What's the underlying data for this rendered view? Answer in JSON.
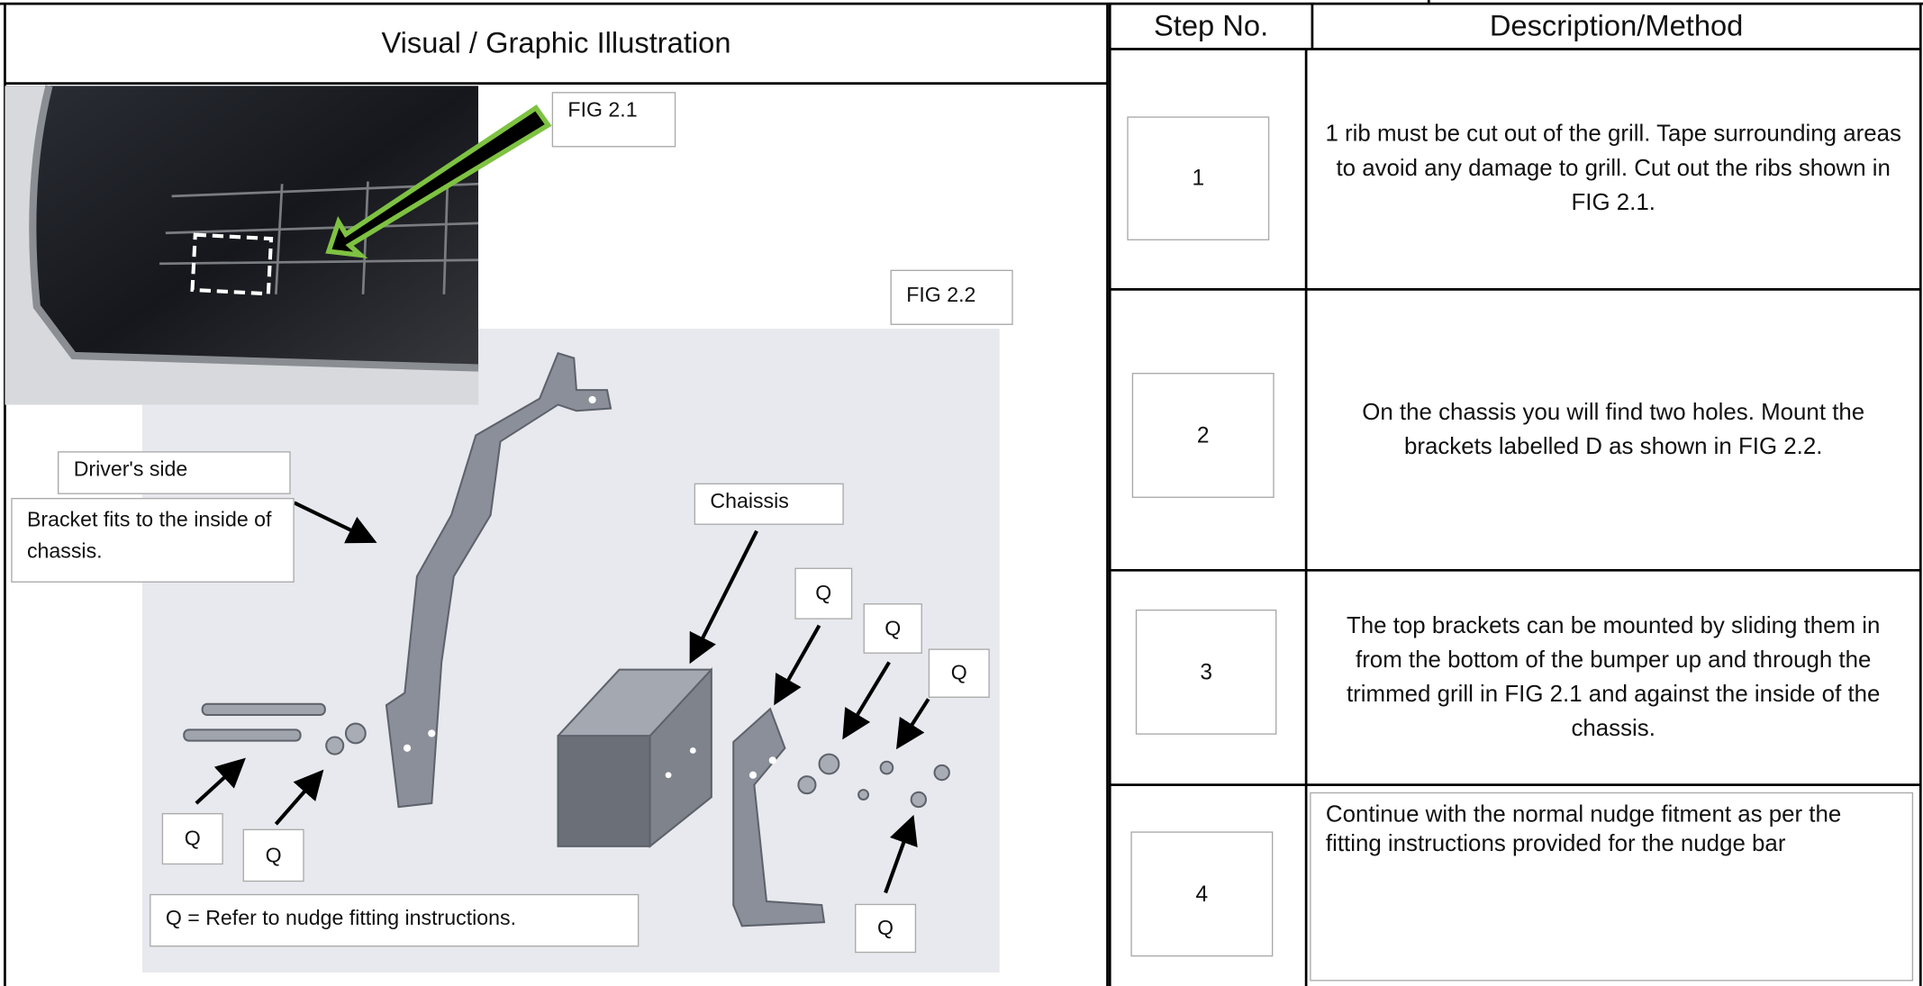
{
  "header": {
    "illustration_title": "Visual / Graphic Illustration",
    "step_column": "Step No.",
    "description_column": "Description/Method"
  },
  "figures": {
    "fig_2_1": "FIG 2.1",
    "fig_2_2": "FIG 2.2"
  },
  "annotations": {
    "drivers_side": "Driver's side",
    "bracket_note": "Bracket fits to the inside of chassis.",
    "chassis": "Chaissis",
    "q_labels": [
      "Q",
      "Q",
      "Q",
      "Q",
      "Q",
      "Q"
    ],
    "legend": "Q = Refer to nudge fitting instructions."
  },
  "steps": [
    {
      "number": 1,
      "description": "1 rib  must be cut  out of the grill. Tape surrounding areas to avoid any damage to grill. Cut out the ribs shown in FIG 2.1."
    },
    {
      "number": 2,
      "description": "On the chassis you will find two holes. Mount the brackets labelled D as shown in FIG 2.2."
    },
    {
      "number": 3,
      "description": "The top brackets can be mounted by sliding them in from the bottom of the bumper up and through the trimmed grill in FIG 2.1 and against the inside of the chassis."
    },
    {
      "number": 4,
      "description": "Continue with the normal nudge fitment as per the fitting instructions provided for the nudge bar"
    }
  ]
}
